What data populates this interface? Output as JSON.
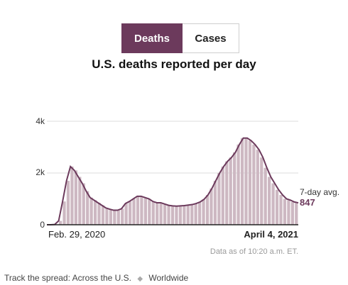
{
  "toggle": {
    "deaths_label": "Deaths",
    "cases_label": "Cases",
    "selected": "Deaths"
  },
  "colors": {
    "accent": "#6c3a5c",
    "bars": "#cdb8c2",
    "line": "#6c3a5c",
    "grid": "#dddddd"
  },
  "chart_data": {
    "type": "bar",
    "title": "U.S. deaths reported per day",
    "x_start": "Feb. 29, 2020",
    "x_end": "April 4, 2021",
    "y_ticks": [
      0,
      2000,
      4000
    ],
    "y_tick_labels": [
      "0",
      "2k",
      "4k"
    ],
    "ylim": [
      0,
      4000
    ],
    "grid": true,
    "weekly_bars": [
      0,
      0,
      10,
      150,
      900,
      1700,
      2250,
      2100,
      1850,
      1600,
      1300,
      1050,
      950,
      850,
      750,
      650,
      600,
      560,
      560,
      620,
      820,
      900,
      1000,
      1100,
      1100,
      1050,
      1000,
      900,
      850,
      850,
      800,
      750,
      730,
      720,
      730,
      740,
      760,
      780,
      820,
      880,
      980,
      1150,
      1400,
      1700,
      2000,
      2250,
      2450,
      2600,
      2800,
      3100,
      3350,
      3350,
      3250,
      3100,
      2900,
      2600,
      2200,
      1850,
      1600,
      1350,
      1150,
      1000,
      950,
      880,
      840
    ],
    "seven_day_avg": [
      0,
      0,
      10,
      150,
      900,
      1700,
      2250,
      2100,
      1850,
      1600,
      1300,
      1050,
      950,
      850,
      750,
      650,
      600,
      560,
      560,
      620,
      820,
      900,
      1000,
      1100,
      1100,
      1050,
      1000,
      900,
      850,
      850,
      800,
      750,
      730,
      720,
      730,
      740,
      760,
      780,
      820,
      880,
      980,
      1150,
      1400,
      1700,
      2000,
      2250,
      2450,
      2600,
      2800,
      3100,
      3350,
      3350,
      3250,
      3100,
      2900,
      2600,
      2200,
      1850,
      1600,
      1350,
      1150,
      1000,
      950,
      880,
      847
    ],
    "avg_label": "7-day avg.",
    "latest_avg": "847"
  },
  "source_note": "Data as of 10:20 a.m. ET.",
  "footer": {
    "prefix": "Track the spread:",
    "link_us": "Across the U.S.",
    "link_world": "Worldwide"
  }
}
